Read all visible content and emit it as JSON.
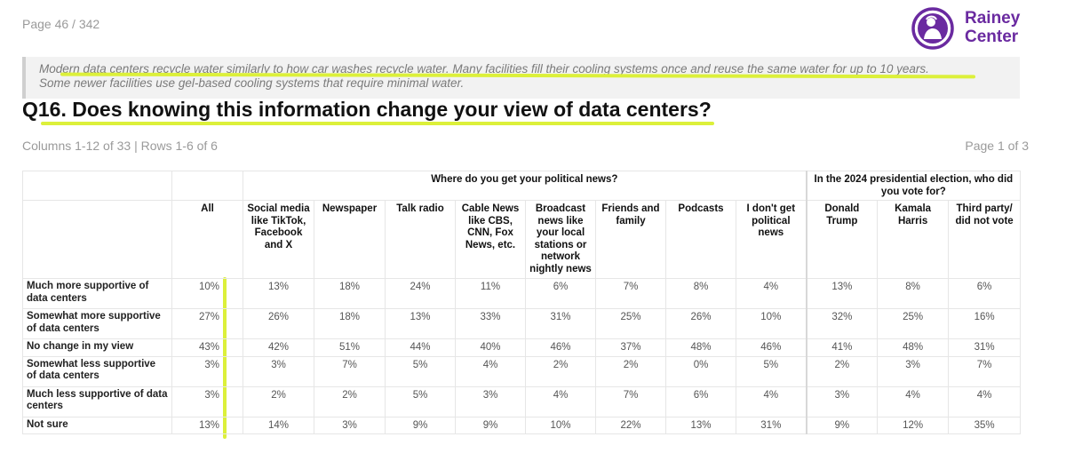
{
  "page_indicator": "Page 46 / 342",
  "logo": {
    "line1": "Rainey",
    "line2": "Center",
    "color": "#6a2aa0"
  },
  "note": {
    "line1": "Modern data centers recycle water similarly to how car washes recycle water. Many facilities fill their cooling systems once and reuse the same water for up to 10 years.",
    "line2": "Some newer facilities use gel-based cooling systems that require minimal water."
  },
  "question_title": "Q16. Does knowing this information change your view of data centers?",
  "meta": {
    "columns_rows": "Columns 1-12 of 33 | Rows 1-6 of 6",
    "page": "Page 1 of 3"
  },
  "highlight_color": "#dcf03a",
  "table": {
    "group_headers": {
      "news": "Where do you get your political news?",
      "vote": "In the 2024 presidential election, who did you vote for?"
    },
    "columns": [
      "All",
      "Social media like TikTok, Facebook and X",
      "Newspaper",
      "Talk radio",
      "Cable News like CBS, CNN, Fox News, etc.",
      "Broadcast news like your local stations or network nightly news",
      "Friends and family",
      "Podcasts",
      "I don't get political news",
      "Donald Trump",
      "Kamala Harris",
      "Third party/ did not vote"
    ],
    "rows": [
      {
        "label": "Much more supportive of data centers",
        "values": [
          "10%",
          "13%",
          "18%",
          "24%",
          "11%",
          "6%",
          "7%",
          "8%",
          "4%",
          "13%",
          "8%",
          "6%"
        ]
      },
      {
        "label": "Somewhat more supportive of data centers",
        "values": [
          "27%",
          "26%",
          "18%",
          "13%",
          "33%",
          "31%",
          "25%",
          "26%",
          "10%",
          "32%",
          "25%",
          "16%"
        ]
      },
      {
        "label": "No change in my view",
        "values": [
          "43%",
          "42%",
          "51%",
          "44%",
          "40%",
          "46%",
          "37%",
          "48%",
          "46%",
          "41%",
          "48%",
          "31%"
        ]
      },
      {
        "label": "Somewhat less supportive of data centers",
        "values": [
          "3%",
          "3%",
          "7%",
          "5%",
          "4%",
          "2%",
          "2%",
          "0%",
          "5%",
          "2%",
          "3%",
          "7%"
        ]
      },
      {
        "label": "Much less supportive of data centers",
        "values": [
          "3%",
          "2%",
          "2%",
          "5%",
          "3%",
          "4%",
          "7%",
          "6%",
          "4%",
          "3%",
          "4%",
          "4%"
        ]
      },
      {
        "label": "Not sure",
        "values": [
          "13%",
          "14%",
          "3%",
          "9%",
          "9%",
          "10%",
          "22%",
          "13%",
          "31%",
          "9%",
          "12%",
          "35%"
        ]
      }
    ]
  }
}
